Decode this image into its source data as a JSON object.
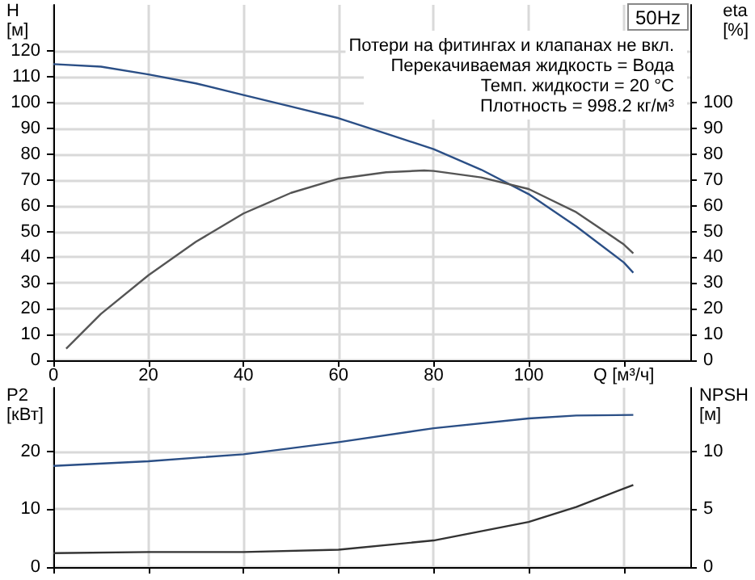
{
  "chart_data": [
    {
      "type": "line",
      "title": "50Hz",
      "ylabel": "H\n[м]",
      "y2label": "eta\n[%]",
      "annotations": [
        "Потери на фитингах и клапанах не вкл.",
        "Перекачиваемая жидкость = Вода",
        "Темп. жидкости = 20 °C",
        "Плотность = 998.2 кг/м³"
      ],
      "xlim": [
        0,
        134
      ],
      "xticks": [
        0,
        20,
        40,
        60,
        80,
        100,
        {
          "value": 120,
          "label": "Q [м³/ч]"
        }
      ],
      "ylim": [
        0,
        138
      ],
      "yticks": [
        0,
        10,
        20,
        30,
        40,
        50,
        60,
        70,
        80,
        90,
        100,
        110,
        120
      ],
      "y2lim": [
        0,
        138
      ],
      "y2ticks": [
        0,
        10,
        20,
        30,
        40,
        50,
        60,
        70,
        80,
        90,
        100
      ],
      "grid": true,
      "marker": "none",
      "line_style": "solid",
      "series": [
        {
          "color": "#2b4f86",
          "x": [
            0,
            10,
            20,
            30,
            40,
            50,
            60,
            70,
            80,
            90,
            100,
            110,
            120,
            122
          ],
          "values": [
            115,
            114,
            111,
            107.5,
            103,
            98.5,
            94,
            88,
            82,
            74,
            64.5,
            52,
            38,
            34
          ]
        },
        {
          "color": "#555555",
          "axis": "y2",
          "x": [
            2.7,
            10,
            20,
            30,
            40,
            50,
            60,
            70,
            78,
            80,
            90,
            100,
            110,
            120,
            122
          ],
          "values": [
            4.5,
            18,
            33,
            46,
            57,
            65,
            70.5,
            73,
            73.7,
            73.5,
            71,
            66.5,
            57.5,
            45,
            41.5
          ]
        }
      ]
    },
    {
      "type": "line",
      "ylabel": "P2\n[кВт]",
      "y2label": "NPSH\n[м]",
      "tick_labels": "y",
      "xlim": [
        0,
        134
      ],
      "xticks": [
        0,
        20,
        40,
        60,
        80,
        100,
        120
      ],
      "ylim": [
        0,
        31
      ],
      "yticks": [
        0,
        10,
        20
      ],
      "y2lim": [
        0,
        15.5
      ],
      "y2ticks": [
        0,
        5,
        10
      ],
      "grid": true,
      "marker": "none",
      "line_style": "solid",
      "series": [
        {
          "color": "#2b4f86",
          "x": [
            0,
            20,
            40,
            60,
            80,
            100,
            110,
            122
          ],
          "values": [
            17.5,
            18.3,
            19.5,
            21.6,
            24,
            25.7,
            26.2,
            26.3
          ]
        },
        {
          "color": "#333333",
          "axis": "y2",
          "x": [
            0,
            20,
            40,
            60,
            80,
            100,
            110,
            122
          ],
          "values": [
            1.2,
            1.3,
            1.3,
            1.5,
            2.3,
            3.9,
            5.2,
            7.1
          ]
        }
      ]
    }
  ]
}
